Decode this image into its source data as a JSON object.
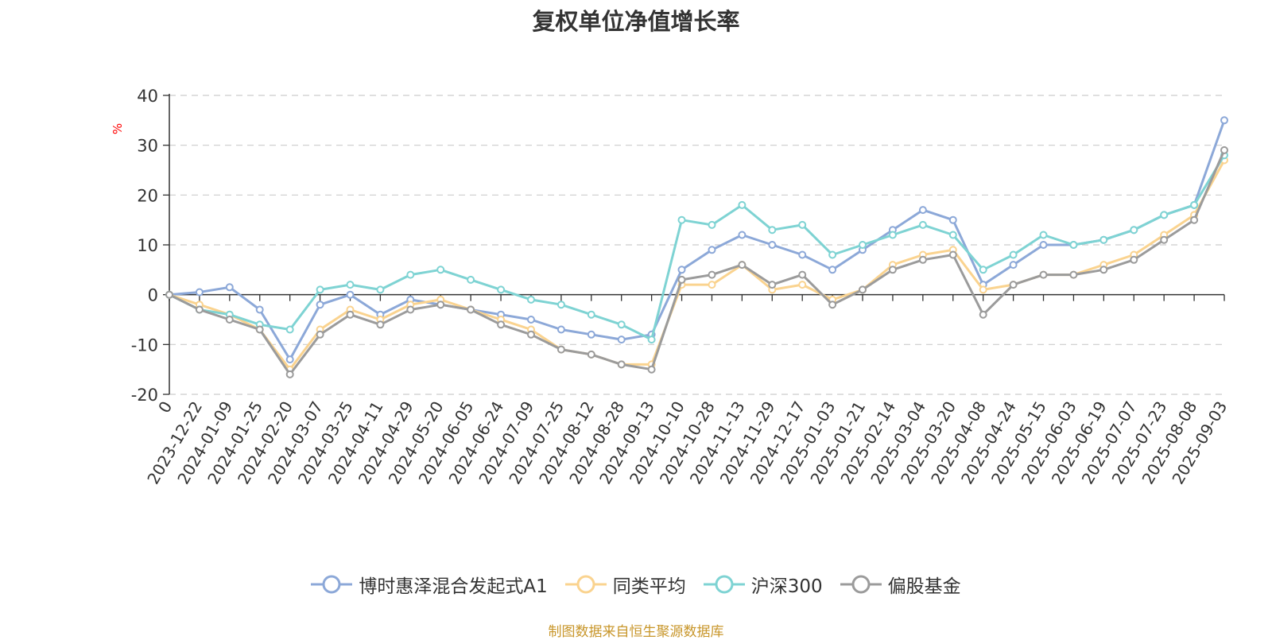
{
  "chart_data": {
    "type": "line",
    "title": "复权单位净值增长率",
    "ylabel": "%",
    "ylim": [
      -20,
      40
    ],
    "yticks": [
      -20,
      -10,
      0,
      10,
      20,
      30,
      40
    ],
    "grid": true,
    "legend_position": "bottom-center",
    "xtick_labels": [
      "0",
      "2023-12-22",
      "2024-01-09",
      "2024-01-25",
      "2024-02-20",
      "2024-03-07",
      "2024-03-25",
      "2024-04-11",
      "2024-04-29",
      "2024-05-20",
      "2024-06-05",
      "2024-06-24",
      "2024-07-09",
      "2024-07-25",
      "2024-08-12",
      "2024-08-28",
      "2024-09-13",
      "2024-10-10",
      "2024-10-28",
      "2024-11-13",
      "2024-11-29",
      "2024-12-17",
      "2025-01-03",
      "2025-01-21",
      "2025-02-14",
      "2025-03-04",
      "2025-03-20",
      "2025-04-08",
      "2025-04-24",
      "2025-05-15",
      "2025-06-03",
      "2025-06-19",
      "2025-07-07",
      "2025-07-23",
      "2025-08-08",
      "2025-09-03"
    ],
    "x_index": [
      0,
      1,
      2,
      3,
      4,
      5,
      6,
      7,
      8,
      9,
      10,
      11,
      12,
      13,
      14,
      15,
      16,
      17,
      18,
      19,
      20,
      21,
      22,
      23,
      24,
      25,
      26,
      27,
      28,
      29,
      30,
      31,
      32,
      33,
      34,
      35
    ],
    "series": [
      {
        "name": "博时惠泽混合发起式A1",
        "color": "#8ca8d8",
        "values": [
          0,
          0.5,
          1.5,
          -3,
          -13,
          -2,
          0,
          -4,
          -1,
          -2,
          -3,
          -4,
          -5,
          -7,
          -8,
          -9,
          -8,
          5,
          9,
          12,
          10,
          8,
          5,
          9,
          13,
          17,
          15,
          2,
          6,
          10,
          10,
          11,
          13,
          16,
          18,
          35
        ]
      },
      {
        "name": "同类平均",
        "color": "#fad38f",
        "values": [
          0,
          -2,
          -4,
          -7,
          -15,
          -7,
          -3,
          -5,
          -2,
          -1,
          -3,
          -5,
          -7,
          -11,
          -12,
          -14,
          -14,
          2,
          2,
          6,
          1,
          2,
          -1,
          1,
          6,
          8,
          9,
          1,
          2,
          4,
          4,
          6,
          8,
          12,
          16,
          27
        ]
      },
      {
        "name": "沪深300",
        "color": "#7ed3d3",
        "values": [
          0,
          -3,
          -4,
          -6,
          -7,
          1,
          2,
          1,
          4,
          5,
          3,
          1,
          -1,
          -2,
          -4,
          -6,
          -9,
          15,
          14,
          18,
          13,
          14,
          8,
          10,
          12,
          14,
          12,
          5,
          8,
          12,
          10,
          11,
          13,
          16,
          18,
          28
        ]
      },
      {
        "name": "偏股基金",
        "color": "#9b9b9b",
        "values": [
          0,
          -3,
          -5,
          -7,
          -16,
          -8,
          -4,
          -6,
          -3,
          -2,
          -3,
          -6,
          -8,
          -11,
          -12,
          -14,
          -15,
          3,
          4,
          6,
          2,
          4,
          -2,
          1,
          5,
          7,
          8,
          -4,
          2,
          4,
          4,
          5,
          7,
          11,
          15,
          29
        ]
      }
    ]
  },
  "legend": [
    "博时惠泽混合发起式A1",
    "同类平均",
    "沪深300",
    "偏股基金"
  ],
  "source_note": "制图数据来自恒生聚源数据库"
}
